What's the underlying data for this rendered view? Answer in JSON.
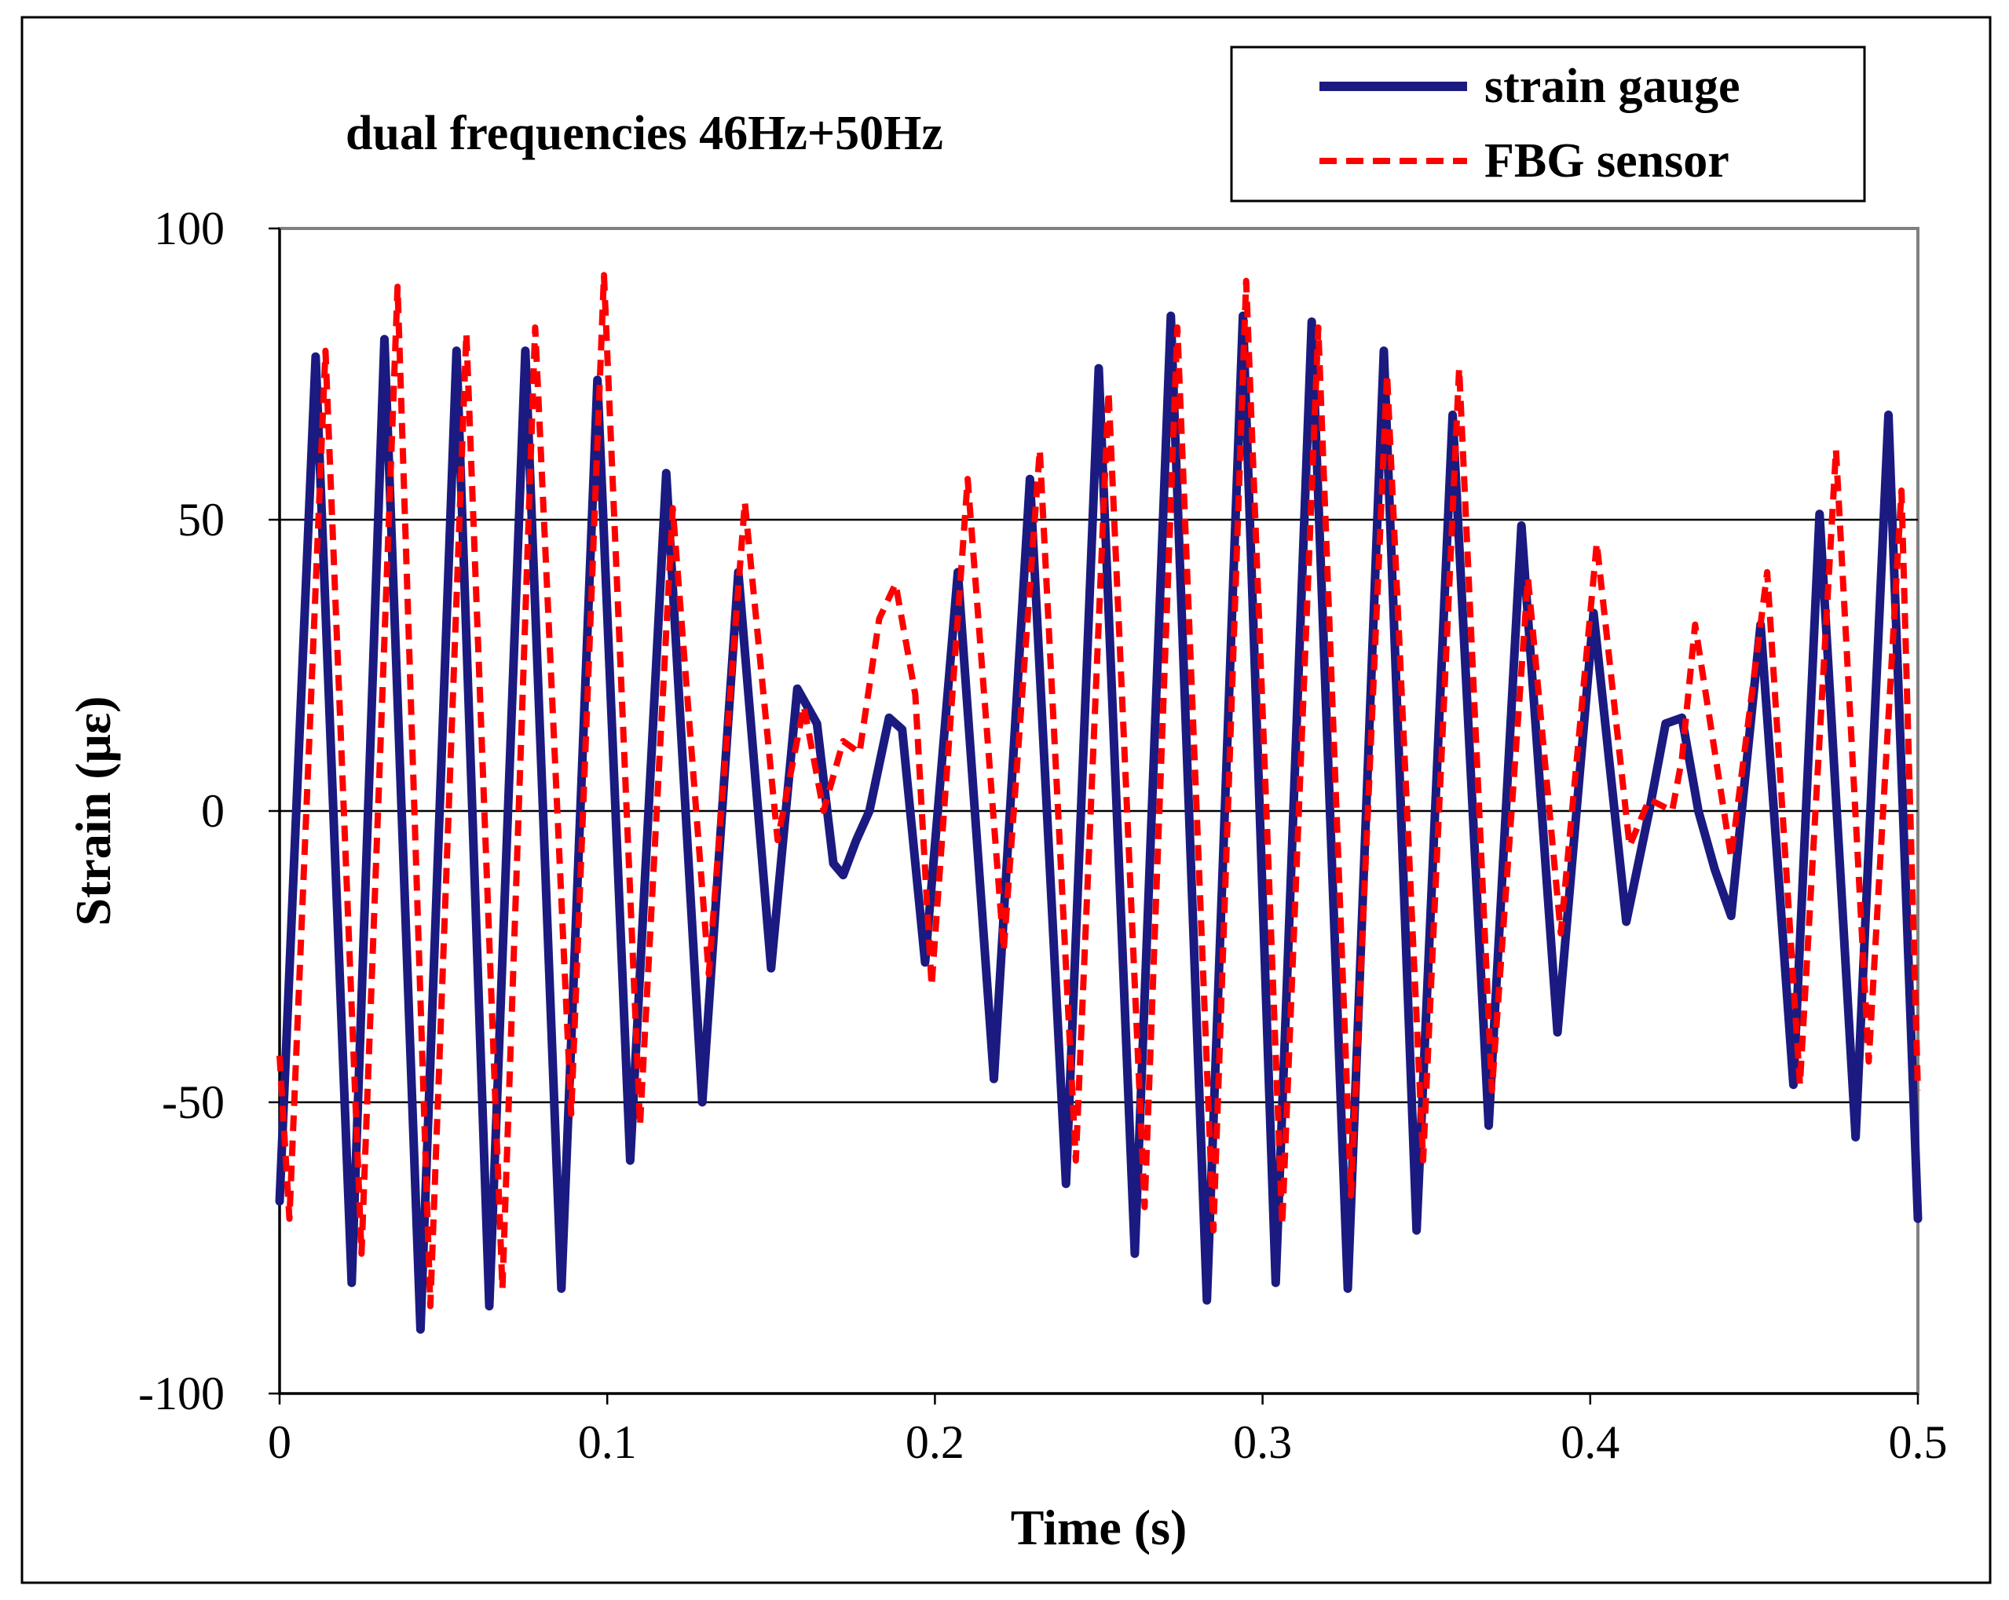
{
  "chart_data": {
    "type": "line",
    "title": "dual  frequencies  46Hz+50Hz",
    "xlabel": "Time (s)",
    "ylabel": "Strain (με)",
    "xlim": [
      0,
      0.5
    ],
    "ylim": [
      -100,
      100
    ],
    "x_ticks": [
      "0",
      "0.1",
      "0.2",
      "0.3",
      "0.4",
      "0.5"
    ],
    "y_ticks": [
      "100",
      "50",
      "0",
      "-50",
      "-100"
    ],
    "gridlines": "horizontal",
    "legend_position": "top-right",
    "series": [
      {
        "name": "strain gauge",
        "color": "#1a1a80",
        "style": "solid",
        "points": [
          [
            0.0,
            -67
          ],
          [
            0.011,
            78
          ],
          [
            0.022,
            -81
          ],
          [
            0.032,
            81
          ],
          [
            0.043,
            -89
          ],
          [
            0.054,
            79
          ],
          [
            0.064,
            -85
          ],
          [
            0.075,
            79
          ],
          [
            0.086,
            -82
          ],
          [
            0.097,
            74
          ],
          [
            0.107,
            -60
          ],
          [
            0.118,
            58
          ],
          [
            0.129,
            -50
          ],
          [
            0.14,
            41
          ],
          [
            0.15,
            -27
          ],
          [
            0.158,
            21
          ],
          [
            0.164,
            15
          ],
          [
            0.169,
            -9
          ],
          [
            0.172,
            -11
          ],
          [
            0.176,
            -5
          ],
          [
            0.18,
            0
          ],
          [
            0.186,
            16
          ],
          [
            0.19,
            14
          ],
          [
            0.197,
            -26
          ],
          [
            0.207,
            41
          ],
          [
            0.218,
            -46
          ],
          [
            0.229,
            57
          ],
          [
            0.24,
            -64
          ],
          [
            0.25,
            76
          ],
          [
            0.261,
            -76
          ],
          [
            0.272,
            85
          ],
          [
            0.283,
            -84
          ],
          [
            0.294,
            85
          ],
          [
            0.304,
            -81
          ],
          [
            0.315,
            84
          ],
          [
            0.326,
            -82
          ],
          [
            0.337,
            79
          ],
          [
            0.347,
            -72
          ],
          [
            0.358,
            68
          ],
          [
            0.369,
            -54
          ],
          [
            0.379,
            49
          ],
          [
            0.39,
            -38
          ],
          [
            0.401,
            34
          ],
          [
            0.411,
            -19
          ],
          [
            0.418,
            0
          ],
          [
            0.423,
            15
          ],
          [
            0.428,
            16
          ],
          [
            0.433,
            0
          ],
          [
            0.438,
            -10
          ],
          [
            0.443,
            -18
          ],
          [
            0.452,
            32
          ],
          [
            0.462,
            -47
          ],
          [
            0.47,
            51
          ],
          [
            0.481,
            -56
          ],
          [
            0.491,
            68
          ],
          [
            0.5,
            -70
          ]
        ]
      },
      {
        "name": "FBG sensor",
        "color": "#ff0000",
        "style": "dashed",
        "points": [
          [
            0.0,
            -42
          ],
          [
            0.003,
            -70
          ],
          [
            0.014,
            79
          ],
          [
            0.025,
            -76
          ],
          [
            0.036,
            90
          ],
          [
            0.046,
            -85
          ],
          [
            0.057,
            82
          ],
          [
            0.068,
            -82
          ],
          [
            0.078,
            83
          ],
          [
            0.089,
            -52
          ],
          [
            0.099,
            92
          ],
          [
            0.11,
            -54
          ],
          [
            0.12,
            52
          ],
          [
            0.131,
            -28
          ],
          [
            0.142,
            53
          ],
          [
            0.152,
            -5
          ],
          [
            0.16,
            18
          ],
          [
            0.166,
            0
          ],
          [
            0.172,
            12
          ],
          [
            0.177,
            10
          ],
          [
            0.183,
            33
          ],
          [
            0.188,
            39
          ],
          [
            0.194,
            20
          ],
          [
            0.199,
            -30
          ],
          [
            0.21,
            57
          ],
          [
            0.221,
            -24
          ],
          [
            0.232,
            62
          ],
          [
            0.243,
            -60
          ],
          [
            0.253,
            72
          ],
          [
            0.264,
            -68
          ],
          [
            0.274,
            83
          ],
          [
            0.285,
            -72
          ],
          [
            0.295,
            91
          ],
          [
            0.306,
            -71
          ],
          [
            0.317,
            83
          ],
          [
            0.327,
            -66
          ],
          [
            0.338,
            75
          ],
          [
            0.349,
            -60
          ],
          [
            0.36,
            76
          ],
          [
            0.37,
            -48
          ],
          [
            0.381,
            40
          ],
          [
            0.391,
            -21
          ],
          [
            0.402,
            46
          ],
          [
            0.412,
            -6
          ],
          [
            0.418,
            2
          ],
          [
            0.425,
            0
          ],
          [
            0.428,
            9
          ],
          [
            0.432,
            32
          ],
          [
            0.443,
            -8
          ],
          [
            0.454,
            41
          ],
          [
            0.464,
            -47
          ],
          [
            0.475,
            62
          ],
          [
            0.485,
            -43
          ],
          [
            0.495,
            55
          ],
          [
            0.5,
            -48
          ]
        ]
      }
    ]
  }
}
